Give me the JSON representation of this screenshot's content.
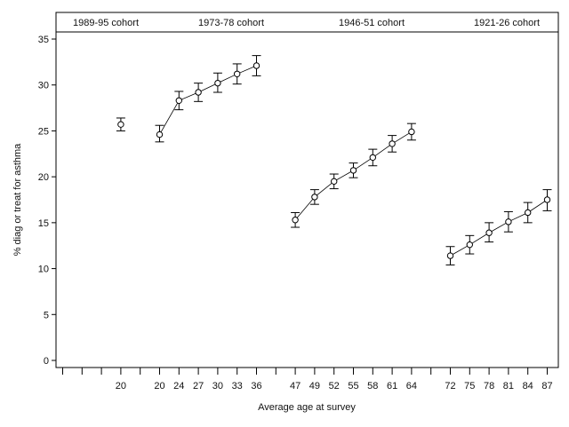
{
  "chart_data": {
    "type": "line",
    "xlabel": "Average age at survey",
    "ylabel": "% diag or treat for asthma",
    "ylim": [
      0,
      35
    ],
    "yticks": [
      0,
      5,
      10,
      15,
      20,
      25,
      30,
      35
    ],
    "grid": false,
    "legend": "none",
    "marker": "open circle",
    "error_bars": true,
    "line_color": "#000000",
    "cohorts": [
      "1989-95 cohort",
      "1973-78 cohort",
      "1946-51 cohort",
      "1921-26 cohort"
    ],
    "series": [
      {
        "points": [
          {
            "x": "20",
            "y": 25.7,
            "lo": 25.0,
            "hi": 26.4
          }
        ]
      },
      {
        "points": [
          {
            "x": "20",
            "y": 24.6,
            "lo": 23.8,
            "hi": 25.6
          },
          {
            "x": "24",
            "y": 28.3,
            "lo": 27.3,
            "hi": 29.3
          },
          {
            "x": "27",
            "y": 29.2,
            "lo": 28.2,
            "hi": 30.2
          },
          {
            "x": "30",
            "y": 30.2,
            "lo": 29.2,
            "hi": 31.3
          },
          {
            "x": "33",
            "y": 31.2,
            "lo": 30.1,
            "hi": 32.3
          },
          {
            "x": "36",
            "y": 32.1,
            "lo": 31.0,
            "hi": 33.2
          }
        ]
      },
      {
        "points": [
          {
            "x": "47",
            "y": 15.3,
            "lo": 14.5,
            "hi": 16.1
          },
          {
            "x": "49",
            "y": 17.8,
            "lo": 17.0,
            "hi": 18.6
          },
          {
            "x": "52",
            "y": 19.5,
            "lo": 18.7,
            "hi": 20.3
          },
          {
            "x": "55",
            "y": 20.7,
            "lo": 19.9,
            "hi": 21.5
          },
          {
            "x": "58",
            "y": 22.1,
            "lo": 21.2,
            "hi": 23.0
          },
          {
            "x": "61",
            "y": 23.6,
            "lo": 22.7,
            "hi": 24.5
          },
          {
            "x": "64",
            "y": 24.9,
            "lo": 24.0,
            "hi": 25.8
          }
        ]
      },
      {
        "points": [
          {
            "x": "72",
            "y": 11.4,
            "lo": 10.4,
            "hi": 12.4
          },
          {
            "x": "75",
            "y": 12.6,
            "lo": 11.6,
            "hi": 13.6
          },
          {
            "x": "78",
            "y": 13.9,
            "lo": 12.9,
            "hi": 15.0
          },
          {
            "x": "81",
            "y": 15.1,
            "lo": 14.0,
            "hi": 16.2
          },
          {
            "x": "84",
            "y": 16.1,
            "lo": 15.0,
            "hi": 17.2
          },
          {
            "x": "87",
            "y": 17.5,
            "lo": 16.3,
            "hi": 18.6
          }
        ]
      }
    ]
  }
}
